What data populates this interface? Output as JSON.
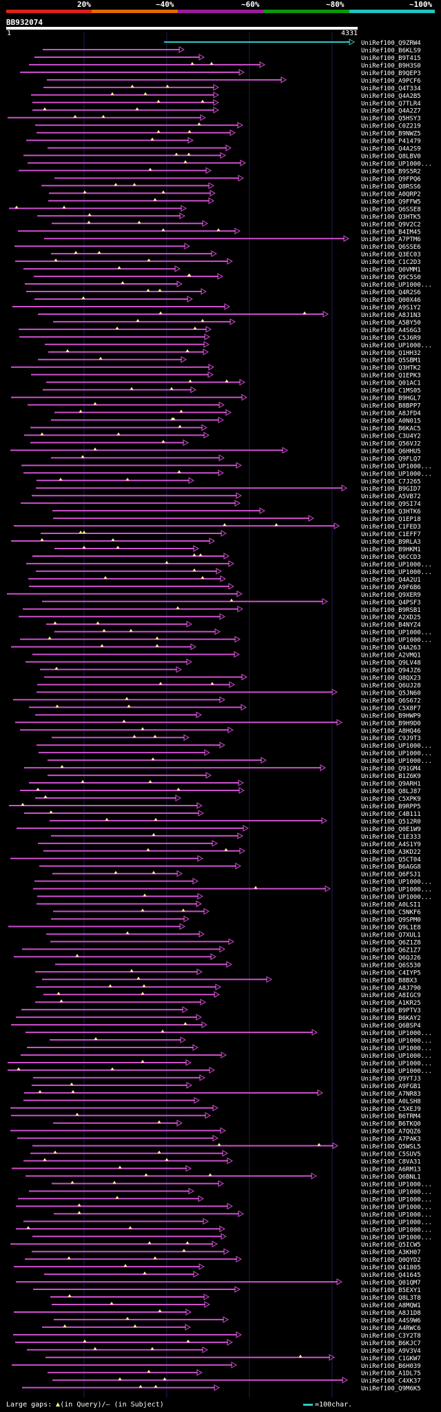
{
  "percent_labels": [
    "20%",
    "~40%",
    "~60%",
    "~80%",
    "~100%"
  ],
  "identity_colors": [
    "#e0201b",
    "#e06c00",
    "#9b1b9b",
    "#0a9a0a",
    "#22c4c4"
  ],
  "hit_color": "#d050d0",
  "query_hit_color": "#2fc8c8",
  "gap_marker_color": "#ffff99",
  "query": {
    "id": "BB932074",
    "start": "1",
    "end": "4331"
  },
  "hits": [
    "UniRef100_Q9ZRW4",
    "UniRef100_B6KLS9",
    "UniRef100_B9T415",
    "UniRef100_B9H3S0",
    "UniRef100_B9QEP3",
    "UniRef100_A9PCF6",
    "UniRef100_Q4T334",
    "UniRef100_Q4A2B5",
    "UniRef100_Q7TLR4",
    "UniRef100_Q4A2Z7",
    "UniRef100_Q5HSY3",
    "UniRef100_C0Z219",
    "UniRef100_B9NWZ5",
    "UniRef100_P41479",
    "UniRef100_Q4A2S9",
    "UniRef100_Q8LBV0",
    "UniRef100_UP1000...",
    "UniRef100_B9S5R2",
    "UniRef100_Q9FPQ6",
    "UniRef100_Q8RSS6",
    "UniRef100_A0QRP2",
    "UniRef100_Q9FFW5",
    "UniRef100_Q6SSE8",
    "UniRef100_Q3HTK5",
    "UniRef100_Q9V2C2",
    "UniRef100_B4IM45",
    "UniRef100_A7PTM6",
    "UniRef100_Q6SSE6",
    "UniRef100_Q3EC03",
    "UniRef100_C1C2D3",
    "UniRef100_Q0VMM1",
    "UniRef100_Q9C5S0",
    "UniRef100_UP1000...",
    "UniRef100_Q4R2S6",
    "UniRef100_Q00X46",
    "UniRef100_A9S1Y2",
    "UniRef100_A8J1N3",
    "UniRef100_A5BY50",
    "UniRef100_A4S6G3",
    "UniRef100_C5J6R9",
    "UniRef100_UP1000...",
    "UniRef100_Q1HH32",
    "UniRef100_Q5SBM1",
    "UniRef100_Q3HTK2",
    "UniRef100_Q1EPK3",
    "UniRef100_Q01AC1",
    "UniRef100_C1MS05",
    "UniRef100_B9HGL7",
    "UniRef100_B8BPP7",
    "UniRef100_A8JFD4",
    "UniRef100_A0N015",
    "UniRef100_B6KAC5",
    "UniRef100_C3U4Y2",
    "UniRef100_Q56VJ2",
    "UniRef100_Q6HHU5",
    "UniRef100_Q9FLQ7",
    "UniRef100_UP1000...",
    "UniRef100_UP1000...",
    "UniRef100_C7J265",
    "UniRef100_B9GID7",
    "UniRef100_A5VB72",
    "UniRef100_Q9SI74",
    "UniRef100_Q3HTK6",
    "UniRef100_Q1EP18",
    "UniRef100_C1FED3",
    "UniRef100_C1EFF7",
    "UniRef100_B9RLA3",
    "UniRef100_B9HKM1",
    "UniRef100_Q6CCD3",
    "UniRef100_UP1000...",
    "UniRef100_UP1000...",
    "UniRef100_Q4A2U1",
    "UniRef100_A9F6B6",
    "UniRef100_Q9XER9",
    "UniRef100_Q4PSF3",
    "UniRef100_B9RSB1",
    "UniRef100_A2XD25",
    "UniRef100_B4NYZ4",
    "UniRef100_UP1000...",
    "UniRef100_UP1000...",
    "UniRef100_Q4A263",
    "UniRef100_A2VMQ1",
    "UniRef100_Q9LV48",
    "UniRef100_Q94JZ6",
    "UniRef100_Q8QX23",
    "UniRef100_Q6UJ28",
    "UniRef100_Q5JN60",
    "UniRef100_Q6S672",
    "UniRef100_C5X8F7",
    "UniRef100_B9HWP9",
    "UniRef100_B9H9D0",
    "UniRef100_A8HQ46",
    "UniRef100_C9J9T3",
    "UniRef100_UP1000...",
    "UniRef100_UP1000...",
    "UniRef100_UP1000...",
    "UniRef100_Q91GM4",
    "UniRef100_B1Z6K9",
    "UniRef100_Q9ARH1",
    "UniRef100_Q8LJ87",
    "UniRef100_C5XPK9",
    "UniRef100_B9RPP5",
    "UniRef100_C4B111",
    "UniRef100_Q512R0",
    "UniRef100_Q0E1W9",
    "UniRef100_C1E333",
    "UniRef100_A4S1Y9",
    "UniRef100_A3KD22",
    "UniRef100_Q5CT04",
    "UniRef100_B6AGG8",
    "UniRef100_Q6FSJ1",
    "UniRef100_UP1000...",
    "UniRef100_UP1000...",
    "UniRef100_UP1000...",
    "UniRef100_A0LSI1",
    "UniRef100_C5NKF6",
    "UniRef100_Q9SPM0",
    "UniRef100_Q9L1E8",
    "UniRef100_Q7XUL1",
    "UniRef100_Q6Z1Z8",
    "UniRef100_Q6Z1Z7",
    "UniRef100_Q6QJ26",
    "UniRef100_Q6S530",
    "UniRef100_C4IYP5",
    "UniRef100_B8BX3",
    "UniRef100_A8J790",
    "UniRef100_A8IGC9",
    "UniRef100_A1KR25",
    "UniRef100_B9PTV3",
    "UniRef100_B6KAY2",
    "UniRef100_Q6BSP4",
    "UniRef100_UP1000...",
    "UniRef100_UP1000...",
    "UniRef100_UP1000...",
    "UniRef100_UP1000...",
    "UniRef100_UP1000...",
    "UniRef100_UP1000...",
    "UniRef100_Q9YTJ3",
    "UniRef100_A9FGB1",
    "UniRef100_A7NR83",
    "UniRef100_A0LSH8",
    "UniRef100_C5XEJ9",
    "UniRef100_B6TRM4",
    "UniRef100_B6TKQ0",
    "UniRef100_A7QQZ6",
    "UniRef100_A7PAK3",
    "UniRef100_Q5WSL5",
    "UniRef100_C5SUV5",
    "UniRef100_C8VA31",
    "UniRef100_A6RM13",
    "UniRef100_Q6BNL1",
    "UniRef100_UP1000...",
    "UniRef100_UP1000...",
    "UniRef100_UP1000...",
    "UniRef100_UP1000...",
    "UniRef100_UP1000...",
    "UniRef100_UP1000...",
    "UniRef100_UP1000...",
    "UniRef100_UP1000...",
    "UniRef100_Q5ICW5",
    "UniRef100_A3KH07",
    "UniRef100_Q0QYD2",
    "UniRef100_Q41805",
    "UniRef100_Q41645",
    "UniRef100_Q01QM7",
    "UniRef100_B5EXY1",
    "UniRef100_Q8L3T8",
    "UniRef100_A8MQW1",
    "UniRef100_A8J1D8",
    "UniRef100_A4S9W6",
    "UniRef100_A4RWC6",
    "UniRef100_C3Y2T8",
    "UniRef100_B6KJC7",
    "UniRef100_A9V3V4",
    "UniRef100_C1GKW7",
    "UniRef100_B6H039",
    "UniRef100_A1DL75",
    "UniRef100_C4XK37",
    "UniRef100_Q9M6K5"
  ],
  "legend": {
    "large_gaps": "Large gaps:",
    "in_query": "(in Query)/",
    "in_subject": "— (in Subject)",
    "scale": "=100char."
  }
}
